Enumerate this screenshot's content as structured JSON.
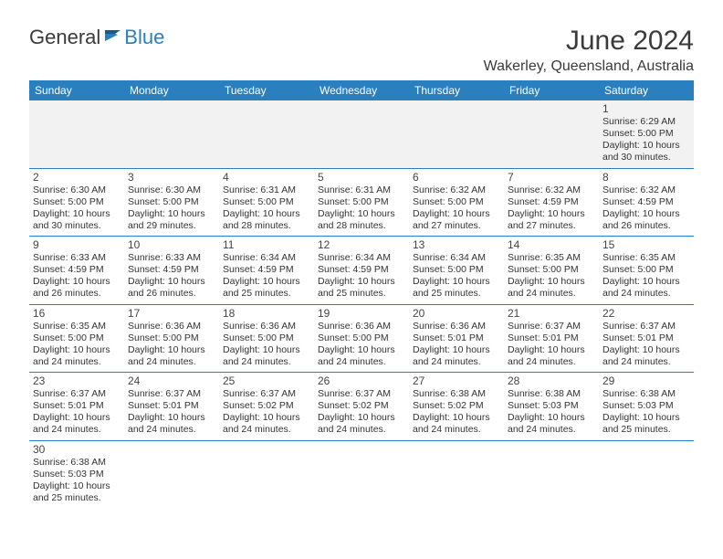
{
  "logo": {
    "general": "General",
    "blue": "Blue"
  },
  "title": "June 2024",
  "location": "Wakerley, Queensland, Australia",
  "colors": {
    "header_bg": "#2a7fbf",
    "header_text": "#ffffff",
    "row_border": "#2a7fbf",
    "body_text": "#333333",
    "first_row_bg": "#f2f2f2",
    "page_bg": "#ffffff"
  },
  "day_headers": [
    "Sunday",
    "Monday",
    "Tuesday",
    "Wednesday",
    "Thursday",
    "Friday",
    "Saturday"
  ],
  "weeks": [
    [
      null,
      null,
      null,
      null,
      null,
      null,
      {
        "n": "1",
        "sr": "Sunrise: 6:29 AM",
        "ss": "Sunset: 5:00 PM",
        "d1": "Daylight: 10 hours",
        "d2": "and 30 minutes."
      }
    ],
    [
      {
        "n": "2",
        "sr": "Sunrise: 6:30 AM",
        "ss": "Sunset: 5:00 PM",
        "d1": "Daylight: 10 hours",
        "d2": "and 30 minutes."
      },
      {
        "n": "3",
        "sr": "Sunrise: 6:30 AM",
        "ss": "Sunset: 5:00 PM",
        "d1": "Daylight: 10 hours",
        "d2": "and 29 minutes."
      },
      {
        "n": "4",
        "sr": "Sunrise: 6:31 AM",
        "ss": "Sunset: 5:00 PM",
        "d1": "Daylight: 10 hours",
        "d2": "and 28 minutes."
      },
      {
        "n": "5",
        "sr": "Sunrise: 6:31 AM",
        "ss": "Sunset: 5:00 PM",
        "d1": "Daylight: 10 hours",
        "d2": "and 28 minutes."
      },
      {
        "n": "6",
        "sr": "Sunrise: 6:32 AM",
        "ss": "Sunset: 5:00 PM",
        "d1": "Daylight: 10 hours",
        "d2": "and 27 minutes."
      },
      {
        "n": "7",
        "sr": "Sunrise: 6:32 AM",
        "ss": "Sunset: 4:59 PM",
        "d1": "Daylight: 10 hours",
        "d2": "and 27 minutes."
      },
      {
        "n": "8",
        "sr": "Sunrise: 6:32 AM",
        "ss": "Sunset: 4:59 PM",
        "d1": "Daylight: 10 hours",
        "d2": "and 26 minutes."
      }
    ],
    [
      {
        "n": "9",
        "sr": "Sunrise: 6:33 AM",
        "ss": "Sunset: 4:59 PM",
        "d1": "Daylight: 10 hours",
        "d2": "and 26 minutes."
      },
      {
        "n": "10",
        "sr": "Sunrise: 6:33 AM",
        "ss": "Sunset: 4:59 PM",
        "d1": "Daylight: 10 hours",
        "d2": "and 26 minutes."
      },
      {
        "n": "11",
        "sr": "Sunrise: 6:34 AM",
        "ss": "Sunset: 4:59 PM",
        "d1": "Daylight: 10 hours",
        "d2": "and 25 minutes."
      },
      {
        "n": "12",
        "sr": "Sunrise: 6:34 AM",
        "ss": "Sunset: 4:59 PM",
        "d1": "Daylight: 10 hours",
        "d2": "and 25 minutes."
      },
      {
        "n": "13",
        "sr": "Sunrise: 6:34 AM",
        "ss": "Sunset: 5:00 PM",
        "d1": "Daylight: 10 hours",
        "d2": "and 25 minutes."
      },
      {
        "n": "14",
        "sr": "Sunrise: 6:35 AM",
        "ss": "Sunset: 5:00 PM",
        "d1": "Daylight: 10 hours",
        "d2": "and 24 minutes."
      },
      {
        "n": "15",
        "sr": "Sunrise: 6:35 AM",
        "ss": "Sunset: 5:00 PM",
        "d1": "Daylight: 10 hours",
        "d2": "and 24 minutes."
      }
    ],
    [
      {
        "n": "16",
        "sr": "Sunrise: 6:35 AM",
        "ss": "Sunset: 5:00 PM",
        "d1": "Daylight: 10 hours",
        "d2": "and 24 minutes."
      },
      {
        "n": "17",
        "sr": "Sunrise: 6:36 AM",
        "ss": "Sunset: 5:00 PM",
        "d1": "Daylight: 10 hours",
        "d2": "and 24 minutes."
      },
      {
        "n": "18",
        "sr": "Sunrise: 6:36 AM",
        "ss": "Sunset: 5:00 PM",
        "d1": "Daylight: 10 hours",
        "d2": "and 24 minutes."
      },
      {
        "n": "19",
        "sr": "Sunrise: 6:36 AM",
        "ss": "Sunset: 5:00 PM",
        "d1": "Daylight: 10 hours",
        "d2": "and 24 minutes."
      },
      {
        "n": "20",
        "sr": "Sunrise: 6:36 AM",
        "ss": "Sunset: 5:01 PM",
        "d1": "Daylight: 10 hours",
        "d2": "and 24 minutes."
      },
      {
        "n": "21",
        "sr": "Sunrise: 6:37 AM",
        "ss": "Sunset: 5:01 PM",
        "d1": "Daylight: 10 hours",
        "d2": "and 24 minutes."
      },
      {
        "n": "22",
        "sr": "Sunrise: 6:37 AM",
        "ss": "Sunset: 5:01 PM",
        "d1": "Daylight: 10 hours",
        "d2": "and 24 minutes."
      }
    ],
    [
      {
        "n": "23",
        "sr": "Sunrise: 6:37 AM",
        "ss": "Sunset: 5:01 PM",
        "d1": "Daylight: 10 hours",
        "d2": "and 24 minutes."
      },
      {
        "n": "24",
        "sr": "Sunrise: 6:37 AM",
        "ss": "Sunset: 5:01 PM",
        "d1": "Daylight: 10 hours",
        "d2": "and 24 minutes."
      },
      {
        "n": "25",
        "sr": "Sunrise: 6:37 AM",
        "ss": "Sunset: 5:02 PM",
        "d1": "Daylight: 10 hours",
        "d2": "and 24 minutes."
      },
      {
        "n": "26",
        "sr": "Sunrise: 6:37 AM",
        "ss": "Sunset: 5:02 PM",
        "d1": "Daylight: 10 hours",
        "d2": "and 24 minutes."
      },
      {
        "n": "27",
        "sr": "Sunrise: 6:38 AM",
        "ss": "Sunset: 5:02 PM",
        "d1": "Daylight: 10 hours",
        "d2": "and 24 minutes."
      },
      {
        "n": "28",
        "sr": "Sunrise: 6:38 AM",
        "ss": "Sunset: 5:03 PM",
        "d1": "Daylight: 10 hours",
        "d2": "and 24 minutes."
      },
      {
        "n": "29",
        "sr": "Sunrise: 6:38 AM",
        "ss": "Sunset: 5:03 PM",
        "d1": "Daylight: 10 hours",
        "d2": "and 25 minutes."
      }
    ],
    [
      {
        "n": "30",
        "sr": "Sunrise: 6:38 AM",
        "ss": "Sunset: 5:03 PM",
        "d1": "Daylight: 10 hours",
        "d2": "and 25 minutes."
      },
      null,
      null,
      null,
      null,
      null,
      null
    ]
  ]
}
